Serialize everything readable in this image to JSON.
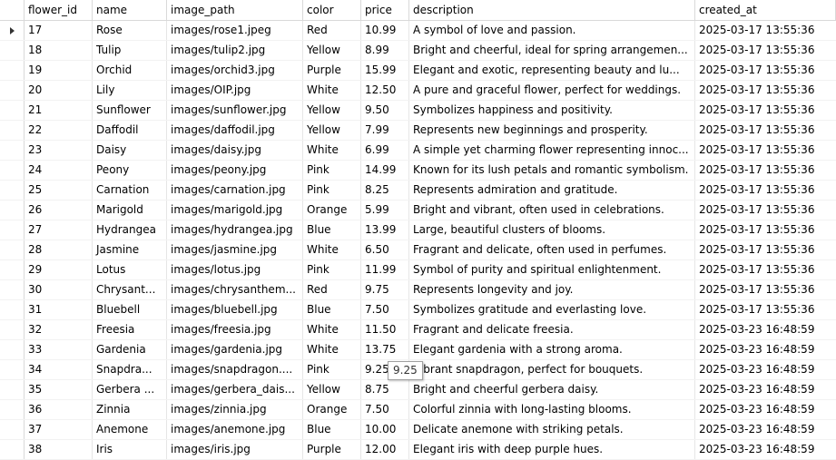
{
  "columns": {
    "flower_id": "flower_id",
    "name": "name",
    "image_path": "image_path",
    "color": "color",
    "price": "price",
    "description": "description",
    "created_at": "created_at"
  },
  "tooltip": "9.25",
  "rows": [
    {
      "flower_id": "17",
      "name": "Rose",
      "image_path": "images/rose1.jpeg",
      "color": "Red",
      "price": "10.99",
      "description": "A symbol of love and passion.",
      "created_at": "2025-03-17 13:55:36"
    },
    {
      "flower_id": "18",
      "name": "Tulip",
      "image_path": "images/tulip2.jpg",
      "color": "Yellow",
      "price": "8.99",
      "description": "Bright and cheerful, ideal for spring arrangemen...",
      "created_at": "2025-03-17 13:55:36"
    },
    {
      "flower_id": "19",
      "name": "Orchid",
      "image_path": "images/orchid3.jpg",
      "color": "Purple",
      "price": "15.99",
      "description": "Elegant and exotic, representing beauty and lu...",
      "created_at": "2025-03-17 13:55:36"
    },
    {
      "flower_id": "20",
      "name": "Lily",
      "image_path": "images/OIP.jpg",
      "color": "White",
      "price": "12.50",
      "description": "A pure and graceful flower, perfect for weddings.",
      "created_at": "2025-03-17 13:55:36"
    },
    {
      "flower_id": "21",
      "name": "Sunflower",
      "image_path": "images/sunflower.jpg",
      "color": "Yellow",
      "price": "9.50",
      "description": "Symbolizes happiness and positivity.",
      "created_at": "2025-03-17 13:55:36"
    },
    {
      "flower_id": "22",
      "name": "Daffodil",
      "image_path": "images/daffodil.jpg",
      "color": "Yellow",
      "price": "7.99",
      "description": "Represents new beginnings and prosperity.",
      "created_at": "2025-03-17 13:55:36"
    },
    {
      "flower_id": "23",
      "name": "Daisy",
      "image_path": "images/daisy.jpg",
      "color": "White",
      "price": "6.99",
      "description": "A simple yet charming flower representing innoc...",
      "created_at": "2025-03-17 13:55:36"
    },
    {
      "flower_id": "24",
      "name": "Peony",
      "image_path": "images/peony.jpg",
      "color": "Pink",
      "price": "14.99",
      "description": "Known for its lush petals and romantic symbolism.",
      "created_at": "2025-03-17 13:55:36"
    },
    {
      "flower_id": "25",
      "name": "Carnation",
      "image_path": "images/carnation.jpg",
      "color": "Pink",
      "price": "8.25",
      "description": "Represents admiration and gratitude.",
      "created_at": "2025-03-17 13:55:36"
    },
    {
      "flower_id": "26",
      "name": "Marigold",
      "image_path": "images/marigold.jpg",
      "color": "Orange",
      "price": "5.99",
      "description": "Bright and vibrant, often used in celebrations.",
      "created_at": "2025-03-17 13:55:36"
    },
    {
      "flower_id": "27",
      "name": "Hydrangea",
      "image_path": "images/hydrangea.jpg",
      "color": "Blue",
      "price": "13.99",
      "description": "Large, beautiful clusters of blooms.",
      "created_at": "2025-03-17 13:55:36"
    },
    {
      "flower_id": "28",
      "name": "Jasmine",
      "image_path": "images/jasmine.jpg",
      "color": "White",
      "price": "6.50",
      "description": "Fragrant and delicate, often used in perfumes.",
      "created_at": "2025-03-17 13:55:36"
    },
    {
      "flower_id": "29",
      "name": "Lotus",
      "image_path": "images/lotus.jpg",
      "color": "Pink",
      "price": "11.99",
      "description": "Symbol of purity and spiritual enlightenment.",
      "created_at": "2025-03-17 13:55:36"
    },
    {
      "flower_id": "30",
      "name": "Chrysant...",
      "image_path": "images/chrysanthem...",
      "color": "Red",
      "price": "9.75",
      "description": "Represents longevity and joy.",
      "created_at": "2025-03-17 13:55:36"
    },
    {
      "flower_id": "31",
      "name": "Bluebell",
      "image_path": "images/bluebell.jpg",
      "color": "Blue",
      "price": "7.50",
      "description": "Symbolizes gratitude and everlasting love.",
      "created_at": "2025-03-17 13:55:36"
    },
    {
      "flower_id": "32",
      "name": "Freesia",
      "image_path": "images/freesia.jpg",
      "color": "White",
      "price": "11.50",
      "description": "Fragrant and delicate freesia.",
      "created_at": "2025-03-23 16:48:59"
    },
    {
      "flower_id": "33",
      "name": "Gardenia",
      "image_path": "images/gardenia.jpg",
      "color": "White",
      "price": "13.75",
      "description": "Elegant gardenia with a strong aroma.",
      "created_at": "2025-03-23 16:48:59"
    },
    {
      "flower_id": "34",
      "name": "Snapdra...",
      "image_path": "images/snapdragon....",
      "color": "Pink",
      "price": "9.25",
      "description": "Vibrant snapdragon, perfect for bouquets.",
      "created_at": "2025-03-23 16:48:59"
    },
    {
      "flower_id": "35",
      "name": "Gerbera ...",
      "image_path": "images/gerbera_dais...",
      "color": "Yellow",
      "price": "8.75",
      "description": "Bright and cheerful gerbera daisy.",
      "created_at": "2025-03-23 16:48:59"
    },
    {
      "flower_id": "36",
      "name": "Zinnia",
      "image_path": "images/zinnia.jpg",
      "color": "Orange",
      "price": "7.50",
      "description": "Colorful zinnia with long-lasting blooms.",
      "created_at": "2025-03-23 16:48:59"
    },
    {
      "flower_id": "37",
      "name": "Anemone",
      "image_path": "images/anemone.jpg",
      "color": "Blue",
      "price": "10.00",
      "description": "Delicate anemone with striking petals.",
      "created_at": "2025-03-23 16:48:59"
    },
    {
      "flower_id": "38",
      "name": "Iris",
      "image_path": "images/iris.jpg",
      "color": "Purple",
      "price": "12.00",
      "description": "Elegant iris with deep purple hues.",
      "created_at": "2025-03-23 16:48:59"
    }
  ]
}
